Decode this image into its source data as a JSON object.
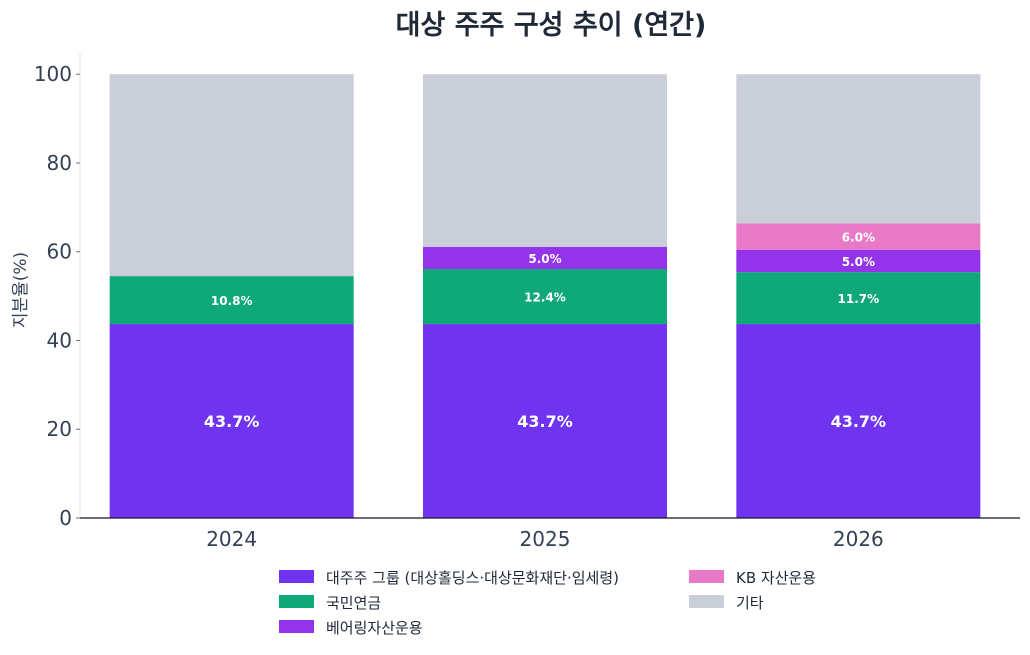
{
  "chart_data": {
    "type": "bar",
    "stacked": true,
    "title": "대상 주주 구성 추이 (연간)",
    "xlabel": "",
    "ylabel": "지분율(%)",
    "ylim": [
      0,
      105
    ],
    "yticks": [
      0,
      20,
      40,
      60,
      80,
      100
    ],
    "categories": [
      "2024",
      "2025",
      "2026"
    ],
    "series": [
      {
        "name": "대주주 그룹 (대상홀딩스·대상문화재단·임세령)",
        "color": "#7033f0",
        "values": [
          43.7,
          43.7,
          43.7
        ],
        "labels": [
          "43.7%",
          "43.7%",
          "43.7%"
        ]
      },
      {
        "name": "국민연금",
        "color": "#0fa878",
        "values": [
          10.8,
          12.4,
          11.7
        ],
        "labels": [
          "10.8%",
          "12.4%",
          "11.7%"
        ]
      },
      {
        "name": "베어링자산운용",
        "color": "#9333ea",
        "values": [
          0,
          5.0,
          5.0
        ],
        "labels": [
          "",
          "5.0%",
          "5.0%"
        ]
      },
      {
        "name": "KB 자산운용",
        "color": "#e879c6",
        "values": [
          0,
          0,
          6.0
        ],
        "labels": [
          "",
          "",
          "6.0%"
        ]
      },
      {
        "name": "기타",
        "color": "#c9ced8",
        "values": [
          45.5,
          38.9,
          33.6
        ],
        "labels": [
          "",
          "",
          ""
        ]
      }
    ],
    "legend": {
      "position": "bottom",
      "columns": 2
    },
    "grid": false
  }
}
